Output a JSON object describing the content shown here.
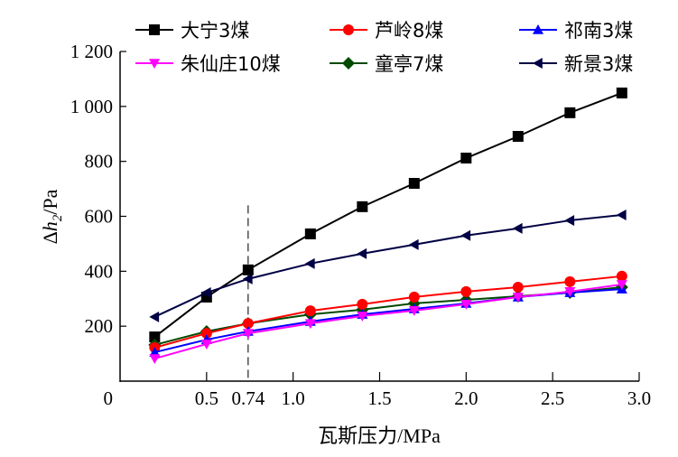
{
  "chart_data": {
    "type": "line",
    "xlabel": "瓦斯压力/MPa",
    "ylabel_parts": {
      "delta": "Δ",
      "var": "h",
      "sub": "2",
      "unit": "/Pa"
    },
    "xlim": [
      0,
      3.0
    ],
    "ylim": [
      0,
      1200
    ],
    "x_ticks": [
      {
        "value": 0.5,
        "label": "0.5"
      },
      {
        "value": 0.74,
        "label": "0.74"
      },
      {
        "value": 1.0,
        "label": "1.0"
      },
      {
        "value": 1.5,
        "label": "1.5"
      },
      {
        "value": 2.0,
        "label": "2.0"
      },
      {
        "value": 2.5,
        "label": "2.5"
      },
      {
        "value": 3.0,
        "label": "3.0"
      }
    ],
    "origin_label": "0",
    "y_ticks": [
      {
        "value": 200,
        "label": "200"
      },
      {
        "value": 400,
        "label": "400"
      },
      {
        "value": 600,
        "label": "600"
      },
      {
        "value": 800,
        "label": "800"
      },
      {
        "value": 1000,
        "label": "1 000"
      },
      {
        "value": 1200,
        "label": "1 200"
      }
    ],
    "grid": false,
    "reference_line": {
      "x": 0.74,
      "style": "dashed",
      "y_to": 640
    },
    "legend_position": "top",
    "x": [
      0.2,
      0.5,
      0.74,
      1.1,
      1.4,
      1.7,
      2.0,
      2.3,
      2.6,
      2.9
    ],
    "series": [
      {
        "name": "大宁3煤",
        "color": "#000000",
        "marker": "square",
        "values": [
          161,
          306,
          405,
          536,
          635,
          720,
          812,
          891,
          977,
          1049
        ]
      },
      {
        "name": "芦岭8煤",
        "color": "#ff0000",
        "marker": "circle",
        "values": [
          122,
          174,
          210,
          256,
          280,
          306,
          326,
          342,
          362,
          382
        ]
      },
      {
        "name": "祁南3煤",
        "color": "#0000ff",
        "marker": "triangle-up",
        "values": [
          105,
          151,
          181,
          217,
          243,
          263,
          283,
          306,
          322,
          335
        ]
      },
      {
        "name": "朱仙庄10煤",
        "color": "#ff00ff",
        "marker": "triangle-down",
        "values": [
          82,
          135,
          174,
          210,
          237,
          257,
          280,
          306,
          326,
          352
        ]
      },
      {
        "name": "童亭7煤",
        "color": "#004a00",
        "marker": "diamond",
        "values": [
          132,
          181,
          210,
          243,
          260,
          283,
          296,
          309,
          322,
          342
        ]
      },
      {
        "name": "新景3煤",
        "color": "#000044",
        "marker": "triangle-left",
        "values": [
          234,
          322,
          372,
          428,
          464,
          497,
          530,
          556,
          585,
          605
        ]
      }
    ]
  }
}
